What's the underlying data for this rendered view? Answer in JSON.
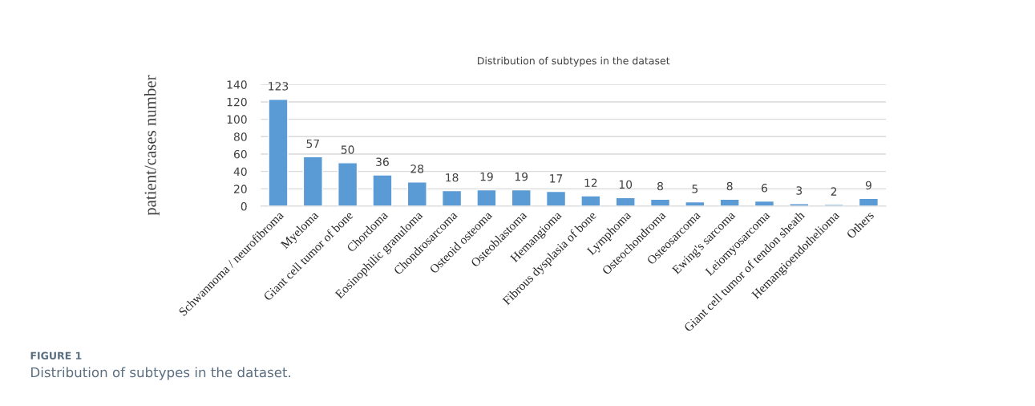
{
  "chart_data": {
    "type": "bar",
    "title": "Distribution of subtypes in the dataset",
    "ylabel": "patient/cases number",
    "categories": [
      "Schwannoma / neurofibroma",
      "Myeloma",
      "Giant cell tumor of bone",
      "Chordoma",
      "Eosinophilic granuloma",
      "Chondrosarcoma",
      "Osteoid osteoma",
      "Osteoblastoma",
      "Hemangioma",
      "Fibrous dysplasia of bone",
      "Lymphoma",
      "Osteochondroma",
      "Osteosarcoma",
      "Ewing's sarcoma",
      "Leiomyosarcoma",
      "Giant cell tumor of tendon sheath",
      "Hemangioendothelioma",
      "Others"
    ],
    "values": [
      123,
      57,
      50,
      36,
      28,
      18,
      19,
      19,
      17,
      12,
      10,
      8,
      5,
      8,
      6,
      3,
      2,
      9
    ],
    "color": "#5b9bd5",
    "ylim": [
      0,
      140
    ],
    "yticks": [
      0,
      20,
      40,
      60,
      80,
      100,
      120,
      140
    ],
    "grid": "y",
    "data_labels": true,
    "legend": false,
    "annotations": [
      "FIGURE 1",
      "Distribution of subtypes in the dataset."
    ]
  }
}
